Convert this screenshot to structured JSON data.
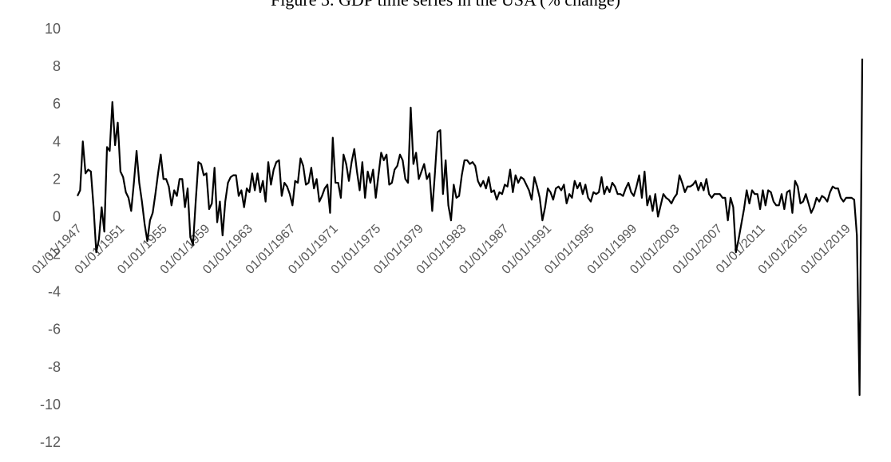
{
  "chart_data": {
    "type": "line",
    "title": "Figure 3. GDP time series in the USA (% change)",
    "xlabel": "",
    "ylabel": "",
    "ylim": [
      -12,
      10
    ],
    "yticks": [
      10,
      8,
      6,
      4,
      2,
      0,
      -2,
      -4,
      -6,
      -8,
      -10,
      -12
    ],
    "x_tick_labels": [
      "01/01/1947",
      "01/01/1951",
      "01/01/1955",
      "01/01/1959",
      "01/01/1963",
      "01/01/1967",
      "01/01/1971",
      "01/01/1975",
      "01/01/1979",
      "01/01/1983",
      "01/01/1987",
      "01/01/1991",
      "01/01/1995",
      "01/01/1999",
      "01/01/2003",
      "01/01/2007",
      "01/01/2011",
      "01/01/2015",
      "01/01/2019"
    ],
    "x_start": "1947-01-01",
    "x_end": "2020-07-01",
    "frequency": "quarterly",
    "grid": false,
    "legend": "none",
    "line_color": "#000000",
    "series": [
      {
        "values": [
          1.1,
          1.4,
          4.0,
          2.3,
          2.5,
          2.4,
          0.5,
          -1.9,
          -1.2,
          0.5,
          -0.8,
          3.7,
          3.5,
          6.1,
          3.8,
          5.0,
          2.4,
          2.1,
          1.3,
          1.0,
          0.3,
          1.8,
          3.5,
          1.8,
          0.8,
          -0.4,
          -1.3,
          -0.2,
          0.2,
          1.2,
          2.3,
          3.3,
          2.0,
          2.0,
          1.6,
          0.6,
          1.4,
          1.1,
          2.0,
          2.0,
          0.5,
          1.5,
          -1.1,
          -1.5,
          0.8,
          2.9,
          2.8,
          2.2,
          2.3,
          0.4,
          0.7,
          2.6,
          -0.3,
          0.8,
          -1.0,
          0.8,
          1.8,
          2.1,
          2.2,
          2.2,
          1.1,
          1.4,
          0.5,
          1.5,
          1.3,
          2.3,
          1.4,
          2.3,
          1.3,
          1.9,
          0.8,
          2.9,
          1.7,
          2.5,
          2.9,
          3.0,
          1.1,
          1.8,
          1.6,
          1.2,
          0.6,
          1.9,
          1.8,
          3.1,
          2.7,
          1.7,
          1.8,
          2.6,
          1.5,
          2.0,
          0.8,
          1.1,
          1.5,
          1.7,
          0.2,
          4.2,
          1.8,
          1.8,
          1.0,
          3.3,
          2.8,
          1.9,
          2.9,
          3.6,
          2.4,
          1.4,
          2.9,
          1.0,
          2.4,
          1.8,
          2.5,
          1.0,
          2.2,
          3.4,
          3.0,
          3.3,
          1.7,
          1.8,
          2.5,
          2.7,
          3.3,
          3.0,
          2.0,
          1.8,
          5.8,
          2.8,
          3.4,
          2.0,
          2.4,
          2.8,
          2.0,
          2.3,
          0.3,
          2.3,
          4.5,
          4.6,
          1.2,
          3.0,
          0.6,
          -0.2,
          1.7,
          1.0,
          1.1,
          2.2,
          3.0,
          3.0,
          2.8,
          2.9,
          2.7,
          1.9,
          1.6,
          1.9,
          1.5,
          2.1,
          1.3,
          1.4,
          0.9,
          1.3,
          1.2,
          1.7,
          1.6,
          2.5,
          1.3,
          2.2,
          1.8,
          2.1,
          2.0,
          1.7,
          1.4,
          0.9,
          2.1,
          1.6,
          1.0,
          -0.2,
          0.5,
          1.5,
          1.3,
          0.9,
          1.5,
          1.6,
          1.4,
          1.7,
          0.7,
          1.2,
          1.0,
          1.9,
          1.5,
          1.8,
          1.2,
          1.7,
          1.0,
          0.8,
          1.3,
          1.2,
          1.3,
          2.1,
          1.2,
          1.6,
          1.3,
          1.8,
          1.6,
          1.2,
          1.2,
          1.1,
          1.5,
          1.8,
          1.3,
          1.1,
          1.6,
          2.2,
          1.0,
          2.4,
          0.6,
          1.1,
          0.3,
          1.2,
          0.0,
          0.6,
          1.2,
          1.0,
          0.9,
          0.7,
          1.0,
          1.2,
          2.2,
          1.8,
          1.3,
          1.6,
          1.6,
          1.7,
          1.9,
          1.4,
          1.8,
          1.4,
          2.0,
          1.2,
          1.0,
          1.2,
          1.2,
          1.2,
          1.0,
          1.0,
          -0.2,
          1.0,
          0.5,
          -1.9,
          -1.2,
          -0.4,
          0.4,
          1.4,
          0.7,
          1.4,
          1.2,
          1.2,
          0.4,
          1.4,
          0.6,
          1.4,
          1.3,
          0.8,
          0.6,
          0.6,
          1.2,
          0.4,
          1.3,
          1.4,
          0.2,
          1.9,
          1.6,
          0.7,
          0.8,
          1.2,
          0.7,
          0.2,
          0.5,
          1.0,
          0.8,
          1.1,
          1.0,
          0.8,
          1.3,
          1.6,
          1.5,
          1.5,
          1.0,
          0.8,
          1.0,
          1.0,
          1.0,
          0.9,
          -1.0,
          -9.5,
          8.4
        ]
      }
    ]
  }
}
